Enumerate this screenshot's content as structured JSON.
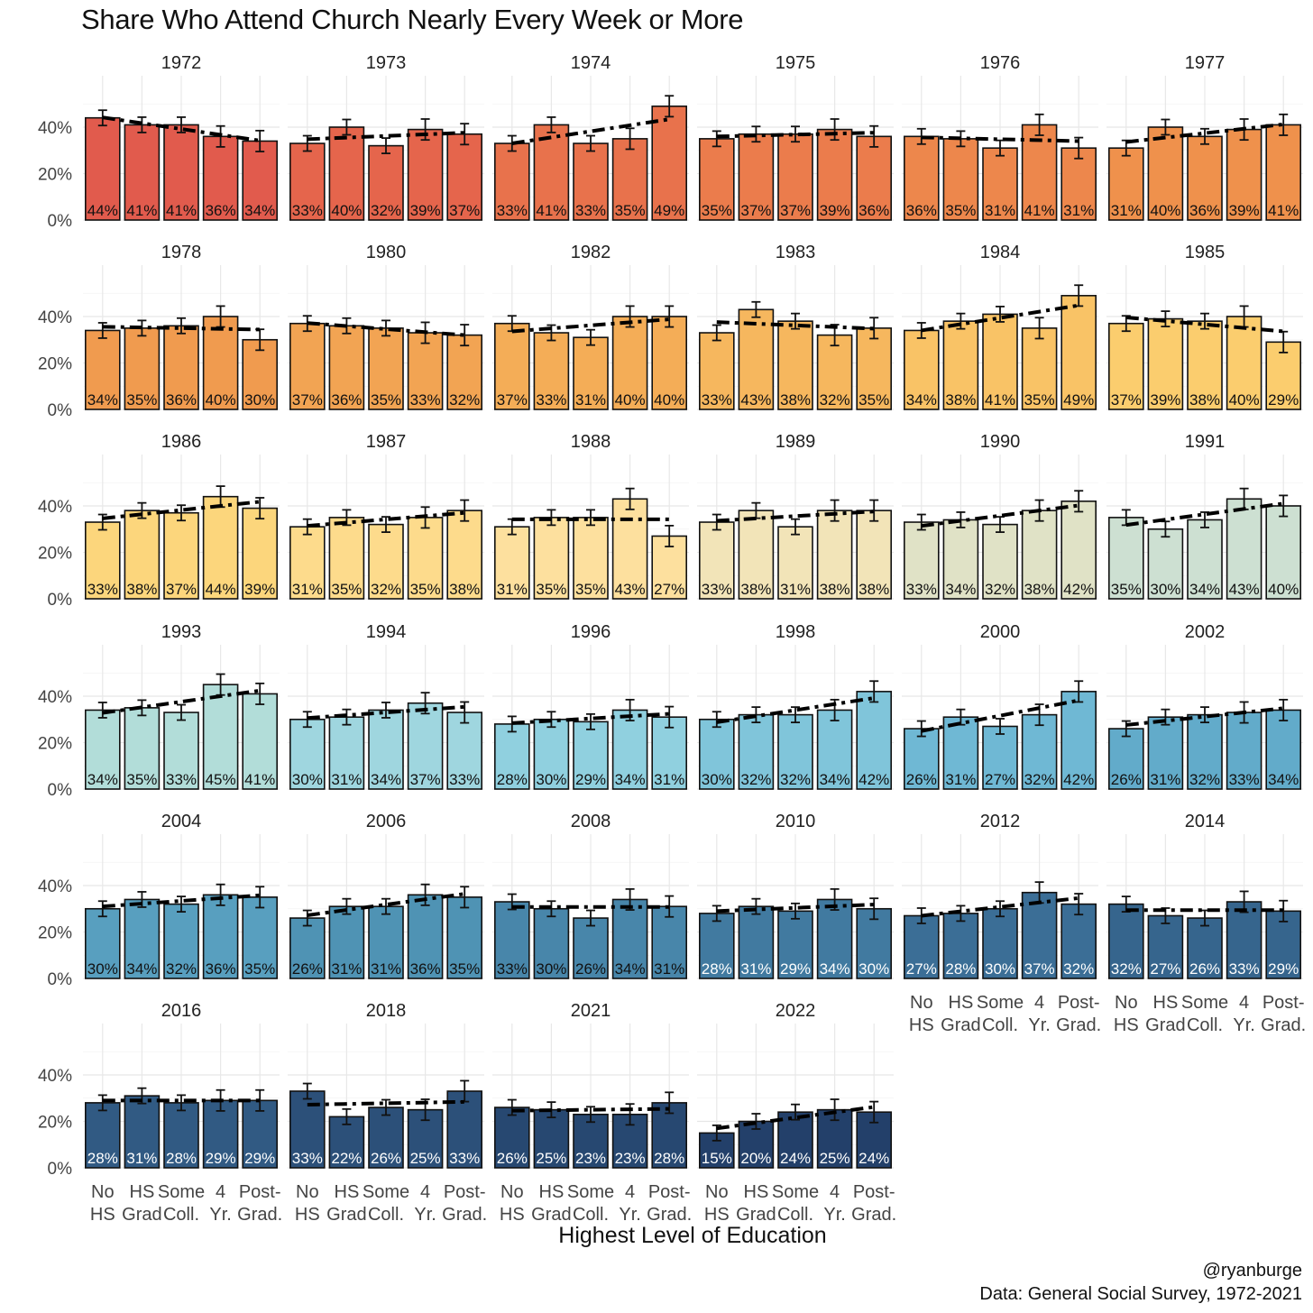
{
  "chart_data": {
    "type": "bar",
    "title": "Share Who Attend Church Nearly Every Week or More",
    "xlabel": "Highest Level of Education",
    "ylabel": "",
    "ylim": [
      0,
      0.6
    ],
    "y_ticks": [
      "0%",
      "20%",
      "40%"
    ],
    "categories": [
      "No HS",
      "HS Grad",
      "Some Coll.",
      "4 Yr.",
      "Post-Grad."
    ],
    "category_lines": [
      [
        "No",
        "HS"
      ],
      [
        "HS",
        "Grad"
      ],
      [
        "Some",
        "Coll."
      ],
      [
        "4",
        "Yr."
      ],
      [
        "Post-",
        "Grad."
      ]
    ],
    "grid": true,
    "error_bars": true,
    "trend_line": "dashed linear fit",
    "caption": [
      "@ryanburge",
      "Data: General Social Survey, 1972-2021"
    ],
    "panels": [
      {
        "year": "1972",
        "values": [
          0.44,
          0.41,
          0.41,
          0.36,
          0.34
        ],
        "color": "#e15b4d"
      },
      {
        "year": "1973",
        "values": [
          0.33,
          0.4,
          0.32,
          0.39,
          0.37
        ],
        "color": "#e5654c"
      },
      {
        "year": "1974",
        "values": [
          0.33,
          0.41,
          0.33,
          0.35,
          0.49
        ],
        "color": "#e8724c"
      },
      {
        "year": "1975",
        "values": [
          0.35,
          0.37,
          0.37,
          0.39,
          0.36
        ],
        "color": "#eb7c4c"
      },
      {
        "year": "1976",
        "values": [
          0.36,
          0.35,
          0.31,
          0.41,
          0.31
        ],
        "color": "#ed874c"
      },
      {
        "year": "1977",
        "values": [
          0.31,
          0.4,
          0.36,
          0.39,
          0.41
        ],
        "color": "#ef914c"
      },
      {
        "year": "1978",
        "values": [
          0.34,
          0.35,
          0.36,
          0.4,
          0.3
        ],
        "color": "#f09b4f"
      },
      {
        "year": "1980",
        "values": [
          0.37,
          0.36,
          0.35,
          0.33,
          0.32
        ],
        "color": "#f2a453"
      },
      {
        "year": "1982",
        "values": [
          0.37,
          0.33,
          0.31,
          0.4,
          0.4
        ],
        "color": "#f4ad57"
      },
      {
        "year": "1983",
        "values": [
          0.33,
          0.43,
          0.38,
          0.32,
          0.35
        ],
        "color": "#f6b75e"
      },
      {
        "year": "1984",
        "values": [
          0.34,
          0.38,
          0.41,
          0.35,
          0.49
        ],
        "color": "#f9c366"
      },
      {
        "year": "1985",
        "values": [
          0.37,
          0.39,
          0.38,
          0.4,
          0.29
        ],
        "color": "#fbcd6e"
      },
      {
        "year": "1986",
        "values": [
          0.33,
          0.38,
          0.37,
          0.44,
          0.39
        ],
        "color": "#fcd67c"
      },
      {
        "year": "1987",
        "values": [
          0.31,
          0.35,
          0.32,
          0.35,
          0.38
        ],
        "color": "#fddb8c"
      },
      {
        "year": "1988",
        "values": [
          0.31,
          0.35,
          0.35,
          0.43,
          0.27
        ],
        "color": "#fde09e"
      },
      {
        "year": "1989",
        "values": [
          0.33,
          0.38,
          0.31,
          0.38,
          0.38
        ],
        "color": "#f2e4b8"
      },
      {
        "year": "1990",
        "values": [
          0.33,
          0.34,
          0.32,
          0.38,
          0.42
        ],
        "color": "#e0e2c6"
      },
      {
        "year": "1991",
        "values": [
          0.35,
          0.3,
          0.34,
          0.43,
          0.4
        ],
        "color": "#cde0d2"
      },
      {
        "year": "1993",
        "values": [
          0.34,
          0.35,
          0.33,
          0.45,
          0.41
        ],
        "color": "#b2ddd9"
      },
      {
        "year": "1994",
        "values": [
          0.3,
          0.31,
          0.34,
          0.37,
          0.33
        ],
        "color": "#9fd6df"
      },
      {
        "year": "1996",
        "values": [
          0.28,
          0.3,
          0.29,
          0.34,
          0.31
        ],
        "color": "#90d0df"
      },
      {
        "year": "1998",
        "values": [
          0.3,
          0.32,
          0.32,
          0.34,
          0.42
        ],
        "color": "#80c5da"
      },
      {
        "year": "2000",
        "values": [
          0.26,
          0.31,
          0.27,
          0.32,
          0.42
        ],
        "color": "#6fb8d4"
      },
      {
        "year": "2002",
        "values": [
          0.26,
          0.31,
          0.32,
          0.33,
          0.34
        ],
        "color": "#62abca"
      },
      {
        "year": "2004",
        "values": [
          0.3,
          0.34,
          0.32,
          0.36,
          0.35
        ],
        "color": "#589fbf"
      },
      {
        "year": "2006",
        "values": [
          0.26,
          0.31,
          0.31,
          0.36,
          0.35
        ],
        "color": "#4f93b4"
      },
      {
        "year": "2008",
        "values": [
          0.33,
          0.3,
          0.26,
          0.34,
          0.31
        ],
        "color": "#4886aa"
      },
      {
        "year": "2010",
        "values": [
          0.28,
          0.31,
          0.29,
          0.34,
          0.3
        ],
        "color": "#417aa0"
      },
      {
        "year": "2012",
        "values": [
          0.27,
          0.28,
          0.3,
          0.37,
          0.32
        ],
        "color": "#3b6e96"
      },
      {
        "year": "2014",
        "values": [
          0.32,
          0.27,
          0.26,
          0.33,
          0.29
        ],
        "color": "#36658d"
      },
      {
        "year": "2016",
        "values": [
          0.28,
          0.31,
          0.28,
          0.29,
          0.29
        ],
        "color": "#315a83"
      },
      {
        "year": "2018",
        "values": [
          0.33,
          0.22,
          0.26,
          0.25,
          0.33
        ],
        "color": "#2c5079"
      },
      {
        "year": "2021",
        "values": [
          0.26,
          0.25,
          0.23,
          0.23,
          0.28
        ],
        "color": "#274871"
      },
      {
        "year": "2022",
        "values": [
          0.15,
          0.2,
          0.24,
          0.25,
          0.24
        ],
        "color": "#23406a"
      }
    ]
  }
}
